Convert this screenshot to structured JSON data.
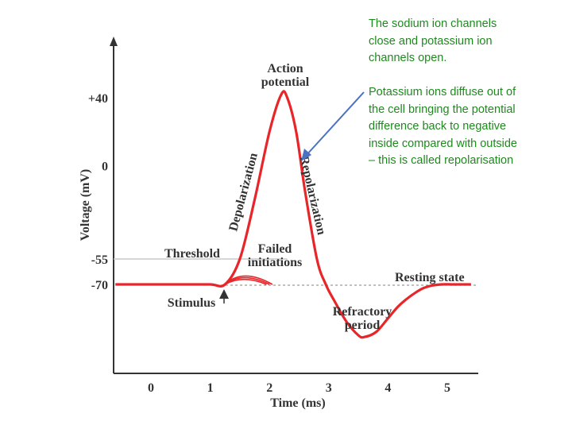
{
  "notes": {
    "sodium": "The sodium ion channels\nclose and potassium ion\nchannels open.",
    "potassium": "Potassium ions diffuse out of\nthe cell bringing the potential\ndifference back to negative\ninside compared with outside\n– this is called repolarisation"
  },
  "chart_data": {
    "type": "line",
    "title": "",
    "xlabel": "Time (ms)",
    "ylabel": "Voltage (mV)",
    "xticks": [
      "0",
      "1",
      "2",
      "3",
      "4",
      "5"
    ],
    "yticks": [
      "+40",
      "0",
      "-55",
      "-70"
    ],
    "ylim": [
      -105,
      60
    ],
    "xlim": [
      -0.6,
      5.6
    ],
    "series": [
      {
        "x": [
          -0.6,
          0.5,
          1.0,
          1.25,
          1.5,
          1.75,
          2.0,
          2.2,
          2.3,
          2.45,
          2.6,
          2.8,
          2.95,
          3.1,
          3.3,
          3.5,
          3.6,
          3.8,
          4.0,
          4.2,
          4.5,
          4.7,
          4.9,
          5.1,
          5.4
        ],
        "values": [
          -70,
          -70,
          -70,
          -70,
          -55,
          -20,
          20,
          42,
          40,
          20,
          -15,
          -55,
          -70,
          -80,
          -92,
          -100,
          -101,
          -98,
          -90,
          -82,
          -74,
          -71,
          -70,
          -70,
          -70
        ],
        "color": "#e8262a"
      }
    ],
    "failed_initiations_peaks": [
      -66,
      -64,
      -62
    ],
    "threshold_value": -55,
    "resting_value": -70,
    "annotations": {
      "action_potential": [
        "Action",
        "potential"
      ],
      "depolarization": "Depolarization",
      "repolarization": "Repolarization",
      "threshold": "Threshold",
      "failed": [
        "Failed",
        "initiations"
      ],
      "resting": "Resting state",
      "stimulus": "Stimulus",
      "refractory": [
        "Refractory",
        "period"
      ]
    },
    "arrow_color": "#4a72c0"
  }
}
